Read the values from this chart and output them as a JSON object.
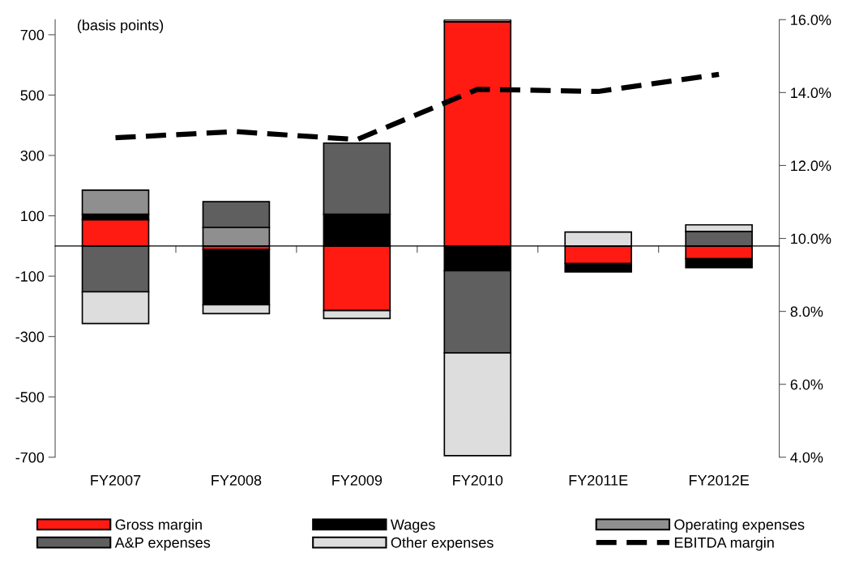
{
  "chart_data": {
    "type": "bar",
    "stacked": true,
    "ylabel": "(basis points)",
    "categories": [
      "FY2007",
      "FY2008",
      "FY2009",
      "FY2010",
      "FY2011E",
      "FY2012E"
    ],
    "series": [
      {
        "name": "Gross margin",
        "color": "#ff1a12",
        "values": [
          87,
          -12,
          -214,
          743,
          -58,
          -42
        ]
      },
      {
        "name": "Wages",
        "color": "#000000",
        "values": [
          18,
          -183,
          105,
          -82,
          -28,
          -30
        ]
      },
      {
        "name": "Operating expenses",
        "color": "#8f8f8f",
        "values": [
          80,
          62,
          0,
          7,
          0,
          0
        ]
      },
      {
        "name": "A&P expenses",
        "color": "#5f5f5f",
        "values": [
          -152,
          85,
          236,
          -272,
          0,
          48
        ]
      },
      {
        "name": "Other expenses",
        "color": "#dddddd",
        "values": [
          -105,
          -29,
          -26,
          -341,
          46,
          22
        ]
      },
      {
        "name": "EBITDA margin",
        "type": "line",
        "axis": "y2",
        "color": "#000000",
        "line_style": "dashed",
        "values": [
          12.76,
          12.93,
          12.71,
          14.09,
          14.03,
          14.5
        ]
      }
    ],
    "ylim": [
      -700,
      750
    ],
    "yticks": [
      -700,
      -500,
      -300,
      -100,
      100,
      300,
      500,
      700
    ],
    "y2lim": [
      4,
      16
    ],
    "y2ticks": [
      {
        "value": 4,
        "label": "4.0%"
      },
      {
        "value": 6,
        "label": "6.0%"
      },
      {
        "value": 8,
        "label": "8.0%"
      },
      {
        "value": 10,
        "label": "10.0%"
      },
      {
        "value": 12,
        "label": "12.0%"
      },
      {
        "value": 14,
        "label": "14.0%"
      },
      {
        "value": 16,
        "label": "16.0%"
      }
    ],
    "grid": false,
    "legend": "bottom"
  }
}
